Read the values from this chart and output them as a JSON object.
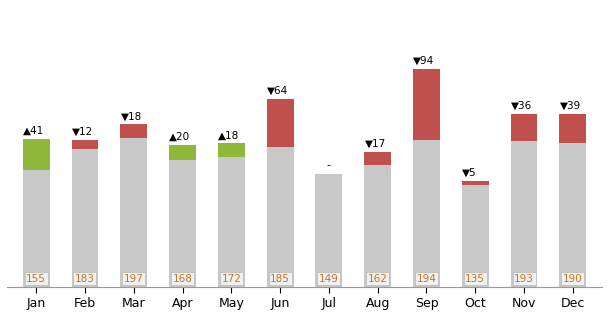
{
  "months": [
    "Jan",
    "Feb",
    "Mar",
    "Apr",
    "May",
    "Jun",
    "Jul",
    "Aug",
    "Sep",
    "Oct",
    "Nov",
    "Dec"
  ],
  "base_values": [
    155,
    183,
    197,
    168,
    172,
    185,
    149,
    162,
    194,
    135,
    193,
    190
  ],
  "delta_values": [
    41,
    -12,
    -18,
    20,
    18,
    -64,
    0,
    -17,
    -94,
    -5,
    -36,
    -39
  ],
  "delta_labels": [
    "41",
    "12",
    "18",
    "20",
    "18",
    "64",
    "-",
    "17",
    "94",
    "5",
    "36",
    "39"
  ],
  "overlay_colors": [
    "#8db83a",
    "#c0504d",
    "#c0504d",
    "#8db83a",
    "#8db83a",
    "#c0504d",
    null,
    "#c0504d",
    "#c0504d",
    "#c0504d",
    "#c0504d",
    "#c0504d"
  ],
  "bar_color": "#c8c8c8",
  "base_label_color": "#c07828",
  "bg_color": "#ffffff",
  "bar_width": 0.55
}
